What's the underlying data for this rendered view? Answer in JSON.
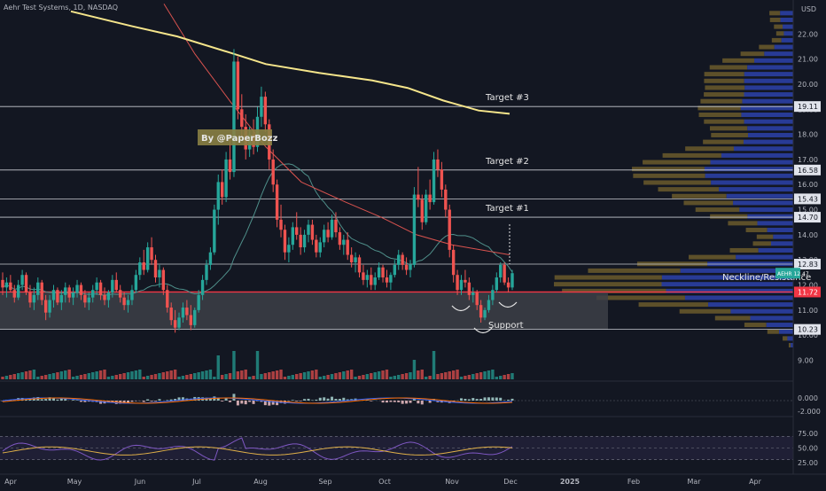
{
  "header": {
    "symbol_title": "Aehr Test Systems, 1D, NASDAQ",
    "currency": "USD"
  },
  "colors": {
    "background": "#131722",
    "up": "#26a69a",
    "down": "#ef5350",
    "ma200": "#f5e58b",
    "ma_red": "#d9534f",
    "ma_teal": "#4f8f8a",
    "profile_blue": "#2b3fa3",
    "profile_brown": "#6b5a2c",
    "support_zone": "#3d3f47",
    "red_line": "#f23645"
  },
  "chart_data": {
    "type": "candlestick",
    "y_axis": {
      "range": [
        9.3,
        23.0
      ],
      "ticks": [
        "22.00",
        "21.00",
        "20.00",
        "19.00",
        "18.00",
        "17.00",
        "16.00",
        "15.00",
        "14.00",
        "13.00",
        "12.00",
        "11.00",
        "10.00",
        "9.00"
      ]
    },
    "x_axis": {
      "ticks": [
        "Apr",
        "May",
        "Jun",
        "Jul",
        "Aug",
        "Sep",
        "Oct",
        "Nov",
        "Dec",
        "2025",
        "Feb",
        "Mar",
        "Apr"
      ]
    },
    "price_tags": [
      {
        "value": 19.11,
        "label": "19.11"
      },
      {
        "value": 16.58,
        "label": "16.58"
      },
      {
        "value": 15.43,
        "label": "15.43"
      },
      {
        "value": 14.7,
        "label": "14.70"
      },
      {
        "value": 12.83,
        "label": "12.83"
      },
      {
        "value": 11.72,
        "label": "11.72"
      },
      {
        "value": 10.23,
        "label": "10.23"
      }
    ],
    "horizontal_lines": [
      19.11,
      16.58,
      15.43,
      14.7,
      12.83,
      10.23
    ],
    "resistance_line": 11.72,
    "support_zone": [
      10.23,
      11.72
    ],
    "annotations": [
      {
        "text": "Target #3",
        "value": 19.11
      },
      {
        "text": "Target #2",
        "value": 16.58
      },
      {
        "text": "Target #1",
        "value": 14.7
      },
      {
        "text": "Neckline/Resistance",
        "value": 12.5
      },
      {
        "text": "Support",
        "value": 10.5
      }
    ],
    "watermark": "By @PaperBozz",
    "current_price_badge": "AEHR 12.47",
    "macd_ticks": [
      "0.000",
      "-2.000"
    ],
    "rsi_ticks": [
      "75.00",
      "50.00",
      "25.00"
    ],
    "candles": [
      [
        12.2,
        12.5,
        11.6,
        11.9
      ],
      [
        11.9,
        12.3,
        11.5,
        12.1
      ],
      [
        12.1,
        12.4,
        11.7,
        11.8
      ],
      [
        11.8,
        12.0,
        11.3,
        11.5
      ],
      [
        11.5,
        12.2,
        11.4,
        12.0
      ],
      [
        12.0,
        12.6,
        11.8,
        12.4
      ],
      [
        12.4,
        12.5,
        11.6,
        11.7
      ],
      [
        11.7,
        12.0,
        11.1,
        11.3
      ],
      [
        11.3,
        11.9,
        11.0,
        11.6
      ],
      [
        11.6,
        12.3,
        11.4,
        12.1
      ],
      [
        12.1,
        12.2,
        11.2,
        11.4
      ],
      [
        11.4,
        11.6,
        10.6,
        10.9
      ],
      [
        10.9,
        11.6,
        10.7,
        11.4
      ],
      [
        11.4,
        12.0,
        11.1,
        11.8
      ],
      [
        11.8,
        11.9,
        11.2,
        11.3
      ],
      [
        11.3,
        11.8,
        11.0,
        11.6
      ],
      [
        11.6,
        12.1,
        11.3,
        11.9
      ],
      [
        11.9,
        12.0,
        11.3,
        11.5
      ],
      [
        11.5,
        11.9,
        11.2,
        11.7
      ],
      [
        11.7,
        12.2,
        11.5,
        12.0
      ],
      [
        12.0,
        12.1,
        11.4,
        11.6
      ],
      [
        11.6,
        11.8,
        11.1,
        11.3
      ],
      [
        11.3,
        11.7,
        11.0,
        11.5
      ],
      [
        11.5,
        12.0,
        11.3,
        11.8
      ],
      [
        11.8,
        12.3,
        11.6,
        12.1
      ],
      [
        12.1,
        12.2,
        11.4,
        11.6
      ],
      [
        11.6,
        11.9,
        11.2,
        11.4
      ],
      [
        11.4,
        11.8,
        11.1,
        11.7
      ],
      [
        11.7,
        12.4,
        11.5,
        12.2
      ],
      [
        12.2,
        12.5,
        11.7,
        11.8
      ],
      [
        11.8,
        12.0,
        11.3,
        11.5
      ],
      [
        11.5,
        11.7,
        11.0,
        11.2
      ],
      [
        11.2,
        11.6,
        10.9,
        11.4
      ],
      [
        11.4,
        12.0,
        11.2,
        11.8
      ],
      [
        11.8,
        12.6,
        11.7,
        12.4
      ],
      [
        12.4,
        13.1,
        12.2,
        12.9
      ],
      [
        12.9,
        13.4,
        12.4,
        12.6
      ],
      [
        12.6,
        13.7,
        12.5,
        13.5
      ],
      [
        13.5,
        13.9,
        12.8,
        13.0
      ],
      [
        13.0,
        13.2,
        12.1,
        12.3
      ],
      [
        12.3,
        12.8,
        11.9,
        12.6
      ],
      [
        12.6,
        12.7,
        11.6,
        11.8
      ],
      [
        11.8,
        12.0,
        10.9,
        11.1
      ],
      [
        11.1,
        11.3,
        10.4,
        10.6
      ],
      [
        10.6,
        11.0,
        10.1,
        10.3
      ],
      [
        10.3,
        10.9,
        10.2,
        10.7
      ],
      [
        10.7,
        11.3,
        10.5,
        11.1
      ],
      [
        11.1,
        11.4,
        10.6,
        10.8
      ],
      [
        10.8,
        11.2,
        10.2,
        10.4
      ],
      [
        10.4,
        11.1,
        10.3,
        11.0
      ],
      [
        11.0,
        11.8,
        10.9,
        11.6
      ],
      [
        11.6,
        12.4,
        11.4,
        12.2
      ],
      [
        12.2,
        13.0,
        12.0,
        12.8
      ],
      [
        12.8,
        13.5,
        12.6,
        13.3
      ],
      [
        13.3,
        15.2,
        13.2,
        15.0
      ],
      [
        15.0,
        16.4,
        14.4,
        16.1
      ],
      [
        16.1,
        16.6,
        15.2,
        15.5
      ],
      [
        15.5,
        17.3,
        15.3,
        17.0
      ],
      [
        17.0,
        17.8,
        16.2,
        16.5
      ],
      [
        16.5,
        21.4,
        16.3,
        20.9
      ],
      [
        20.9,
        21.1,
        18.6,
        19.0
      ],
      [
        19.0,
        19.6,
        17.9,
        18.3
      ],
      [
        18.3,
        18.8,
        17.0,
        17.4
      ],
      [
        17.4,
        18.3,
        17.1,
        18.0
      ],
      [
        18.0,
        18.6,
        17.2,
        17.5
      ],
      [
        17.5,
        19.1,
        17.3,
        18.7
      ],
      [
        18.7,
        19.9,
        18.3,
        19.5
      ],
      [
        19.5,
        19.7,
        18.1,
        18.4
      ],
      [
        18.4,
        18.6,
        16.6,
        17.0
      ],
      [
        17.0,
        17.4,
        15.7,
        16.0
      ],
      [
        16.0,
        16.2,
        14.3,
        14.6
      ],
      [
        14.6,
        15.2,
        13.9,
        14.2
      ],
      [
        14.2,
        14.4,
        13.0,
        13.3
      ],
      [
        13.3,
        13.9,
        12.9,
        13.6
      ],
      [
        13.6,
        14.5,
        13.4,
        14.3
      ],
      [
        14.3,
        14.9,
        13.8,
        14.0
      ],
      [
        14.0,
        14.3,
        13.2,
        13.5
      ],
      [
        13.5,
        14.2,
        13.3,
        14.0
      ],
      [
        14.0,
        14.6,
        13.7,
        14.4
      ],
      [
        14.4,
        14.6,
        13.6,
        13.8
      ],
      [
        13.8,
        14.0,
        13.1,
        13.3
      ],
      [
        13.3,
        13.9,
        13.1,
        13.7
      ],
      [
        13.7,
        14.4,
        13.5,
        14.2
      ],
      [
        14.2,
        14.5,
        13.7,
        13.9
      ],
      [
        13.9,
        14.8,
        13.8,
        14.6
      ],
      [
        14.6,
        14.9,
        13.9,
        14.1
      ],
      [
        14.1,
        14.3,
        13.4,
        13.6
      ],
      [
        13.6,
        14.0,
        13.2,
        13.8
      ],
      [
        13.8,
        14.1,
        13.0,
        13.2
      ],
      [
        13.2,
        13.5,
        12.7,
        12.9
      ],
      [
        12.9,
        13.3,
        12.5,
        13.1
      ],
      [
        13.1,
        13.2,
        12.3,
        12.5
      ],
      [
        12.5,
        12.8,
        12.0,
        12.2
      ],
      [
        12.2,
        12.6,
        11.9,
        12.4
      ],
      [
        12.4,
        12.7,
        11.8,
        12.0
      ],
      [
        12.0,
        12.5,
        11.8,
        12.3
      ],
      [
        12.3,
        12.9,
        12.2,
        12.7
      ],
      [
        12.7,
        12.8,
        12.1,
        12.3
      ],
      [
        12.3,
        12.6,
        11.9,
        12.1
      ],
      [
        12.1,
        12.5,
        11.8,
        12.4
      ],
      [
        12.4,
        13.0,
        12.3,
        12.8
      ],
      [
        12.8,
        13.4,
        12.6,
        13.2
      ],
      [
        13.2,
        13.3,
        12.6,
        12.8
      ],
      [
        12.8,
        13.1,
        12.4,
        12.6
      ],
      [
        12.6,
        13.0,
        12.3,
        12.8
      ],
      [
        12.8,
        15.9,
        12.7,
        15.6
      ],
      [
        15.6,
        16.7,
        15.1,
        15.4
      ],
      [
        15.4,
        15.6,
        14.2,
        14.5
      ],
      [
        14.5,
        15.8,
        14.4,
        15.6
      ],
      [
        15.6,
        16.2,
        15.0,
        15.3
      ],
      [
        15.3,
        17.3,
        15.2,
        17.0
      ],
      [
        17.0,
        17.4,
        16.3,
        16.6
      ],
      [
        16.6,
        16.9,
        15.5,
        15.8
      ],
      [
        15.8,
        16.0,
        14.7,
        15.0
      ],
      [
        15.0,
        15.2,
        13.1,
        13.4
      ],
      [
        13.4,
        13.6,
        12.1,
        12.4
      ],
      [
        12.4,
        12.6,
        11.6,
        11.8
      ],
      [
        11.8,
        12.4,
        11.6,
        12.2
      ],
      [
        12.2,
        12.6,
        11.9,
        12.1
      ],
      [
        12.1,
        12.3,
        11.4,
        11.6
      ],
      [
        11.6,
        11.9,
        11.3,
        11.7
      ],
      [
        11.7,
        11.8,
        11.0,
        11.2
      ],
      [
        11.2,
        11.4,
        10.5,
        10.7
      ],
      [
        10.7,
        11.1,
        10.6,
        11.0
      ],
      [
        11.0,
        11.6,
        10.9,
        11.4
      ],
      [
        11.4,
        12.0,
        11.2,
        11.8
      ],
      [
        11.8,
        12.5,
        11.7,
        12.3
      ],
      [
        12.3,
        12.9,
        12.1,
        12.8
      ],
      [
        12.8,
        12.9,
        12.0,
        12.1
      ],
      [
        12.1,
        12.3,
        11.7,
        11.9
      ],
      [
        11.9,
        12.6,
        11.8,
        12.47
      ]
    ]
  }
}
